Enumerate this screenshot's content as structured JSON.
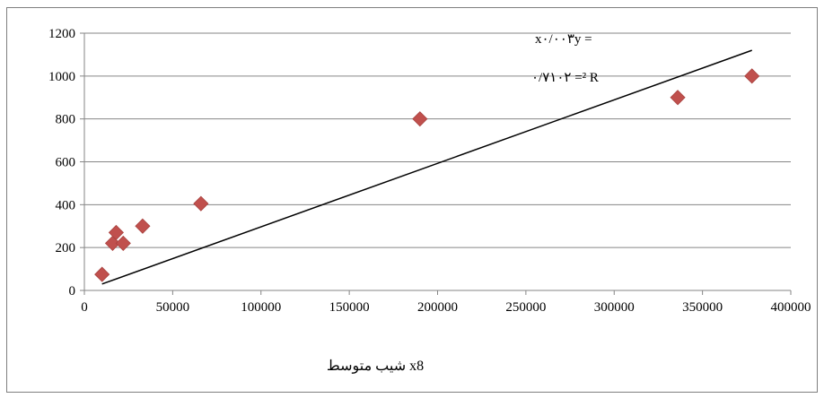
{
  "chart_data": {
    "type": "scatter",
    "title": "",
    "xlabel": "شیب متوسط x8",
    "ylabel": "",
    "xlim": [
      0,
      400000
    ],
    "ylim": [
      0,
      1200
    ],
    "x_ticks": [
      0,
      50000,
      100000,
      150000,
      200000,
      250000,
      300000,
      350000,
      400000
    ],
    "y_ticks": [
      0,
      200,
      400,
      600,
      800,
      1000,
      1200
    ],
    "x_tick_labels": [
      "0",
      "50000",
      "100000",
      "150000",
      "200000",
      "250000",
      "300000",
      "350000",
      "400000"
    ],
    "y_tick_labels": [
      "0",
      "200",
      "400",
      "600",
      "800",
      "1000",
      "1200"
    ],
    "grid": "horizontal",
    "legend": "none",
    "marker": "diamond",
    "marker_color": "#c0504d",
    "trendline_color": "#000000",
    "series": [
      {
        "x": [
          10000,
          16000,
          18000,
          22000,
          33000,
          66000,
          190000,
          336000,
          378000
        ],
        "y": [
          75,
          220,
          270,
          220,
          300,
          405,
          800,
          900,
          1000
        ]
      }
    ],
    "trendline": {
      "type": "linear",
      "x": [
        10000,
        378000
      ],
      "y": [
        30,
        1120
      ]
    },
    "annotation": {
      "line1": "x۰/۰۰۳y =",
      "line2": "۰/۷۱۰۲ =² R"
    }
  }
}
